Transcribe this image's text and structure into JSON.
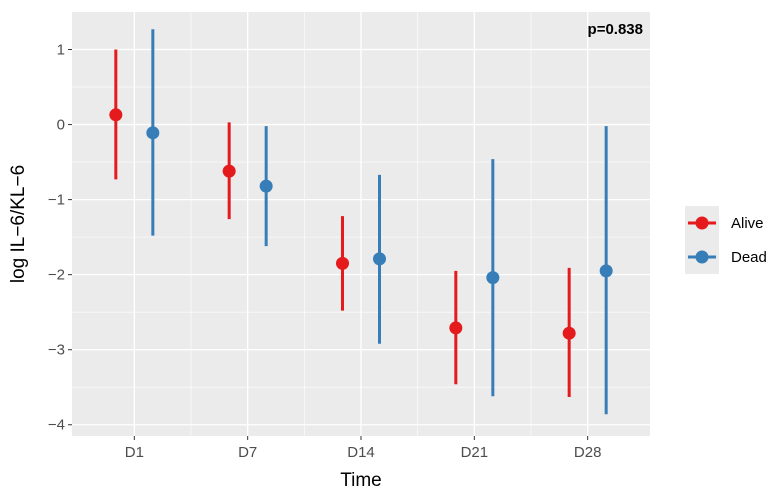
{
  "chart_data": {
    "type": "scatter",
    "title": "",
    "xlabel": "Time",
    "ylabel": "log IL−6/KL−6",
    "categories": [
      "D1",
      "D7",
      "D14",
      "D21",
      "D28"
    ],
    "y_ticks": [
      "−4",
      "−3",
      "−2",
      "−1",
      "0",
      "1"
    ],
    "y_tick_values": [
      -4,
      -3,
      -2,
      -1,
      0,
      1
    ],
    "ylim": [
      -4.15,
      1.5
    ],
    "grid": true,
    "legend_position": "right",
    "annotation": "p=0.838",
    "series": [
      {
        "name": "Alive",
        "color": "#e41a1c",
        "values": [
          0.13,
          -0.62,
          -1.85,
          -2.71,
          -2.78
        ],
        "lower": [
          -0.73,
          -1.26,
          -2.48,
          -3.46,
          -3.63
        ],
        "upper": [
          1.0,
          0.03,
          -1.22,
          -1.95,
          -1.91
        ]
      },
      {
        "name": "Dead",
        "color": "#377eb8",
        "values": [
          -0.11,
          -0.82,
          -1.79,
          -2.04,
          -1.95
        ],
        "lower": [
          -1.48,
          -1.62,
          -2.92,
          -3.62,
          -3.86
        ],
        "upper": [
          1.27,
          -0.02,
          -0.67,
          -0.46,
          -0.02
        ]
      }
    ]
  }
}
